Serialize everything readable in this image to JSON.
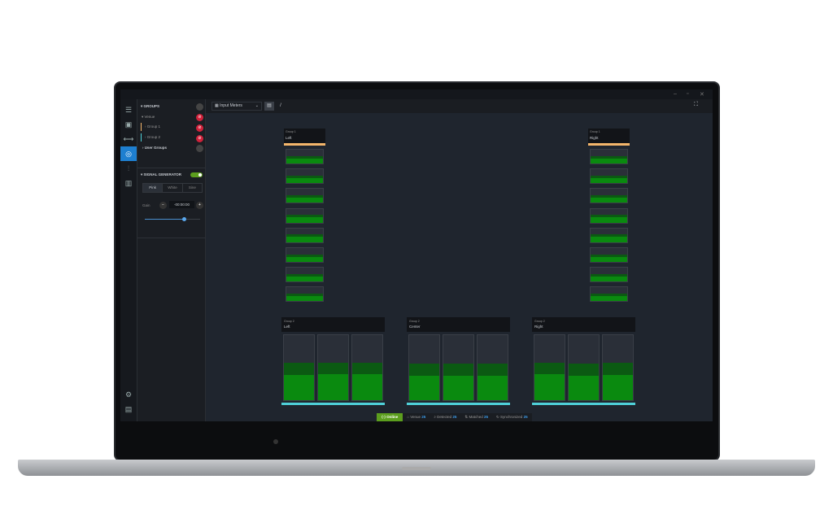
{
  "window": {
    "minimize": "–",
    "maximize": "▫",
    "close": "✕"
  },
  "rail": [
    {
      "icon": "menu-icon",
      "g": "☰"
    },
    {
      "icon": "devices-icon",
      "g": "▣"
    },
    {
      "icon": "network-icon",
      "g": "⟷"
    },
    {
      "icon": "meters-icon",
      "g": "◎",
      "active": true
    },
    {
      "icon": "mixer-icon",
      "g": "⫶"
    },
    {
      "icon": "analyzer-icon",
      "g": "▥"
    }
  ],
  "rail_bottom": [
    {
      "icon": "settings-icon",
      "g": "⚙"
    },
    {
      "icon": "log-icon",
      "g": "▤"
    }
  ],
  "groups": {
    "title": "GROUPS",
    "venue": "Venue",
    "items": [
      {
        "label": "Group 1",
        "color": "#f4b66b"
      },
      {
        "label": "Group 2",
        "color": "#4fd0d8"
      }
    ],
    "user_groups": "User Groups"
  },
  "signal_generator": {
    "title": "SIGNAL GENERATOR",
    "enabled": true,
    "tabs": [
      "Pink",
      "White",
      "Sine"
    ],
    "active_tab": "Pink",
    "gain_label": "Gain",
    "gain_value": "-00:00:00",
    "slider_fraction": 0.7
  },
  "toolbar": {
    "view_select": "Input Meters"
  },
  "meters_top": [
    {
      "group": "Group 1",
      "name": "Left",
      "color": "#f4b66b",
      "levels": [
        0.55,
        0.55,
        0.55,
        0.55,
        0.55,
        0.55,
        0.55,
        0.55
      ]
    },
    {
      "group": "Group 1",
      "name": "Right",
      "color": "#f4b66b",
      "levels": [
        0.55,
        0.55,
        0.55,
        0.55,
        0.55,
        0.55,
        0.55,
        0.55
      ]
    }
  ],
  "meters_bottom": [
    {
      "group": "Group 2",
      "name": "Left",
      "color": "#4fd0d8",
      "levels": [
        0.57,
        0.58,
        0.58
      ]
    },
    {
      "group": "Group 2",
      "name": "Center",
      "color": "#4fd0d8",
      "levels": [
        0.56,
        0.56,
        0.56
      ]
    },
    {
      "group": "Group 2",
      "name": "Right",
      "color": "#4fd0d8",
      "levels": [
        0.58,
        0.56,
        0.57
      ]
    }
  ],
  "status": {
    "online": "Online",
    "items": [
      {
        "icon": "home-icon",
        "g": "⌂",
        "label": "Venue",
        "count": "25"
      },
      {
        "icon": "search-icon",
        "g": "⌕",
        "label": "Detected",
        "count": "25"
      },
      {
        "icon": "match-icon",
        "g": "⇅",
        "label": "Matched",
        "count": "25"
      },
      {
        "icon": "sync-icon",
        "g": "↻",
        "label": "Synchronized",
        "count": "25"
      }
    ]
  }
}
